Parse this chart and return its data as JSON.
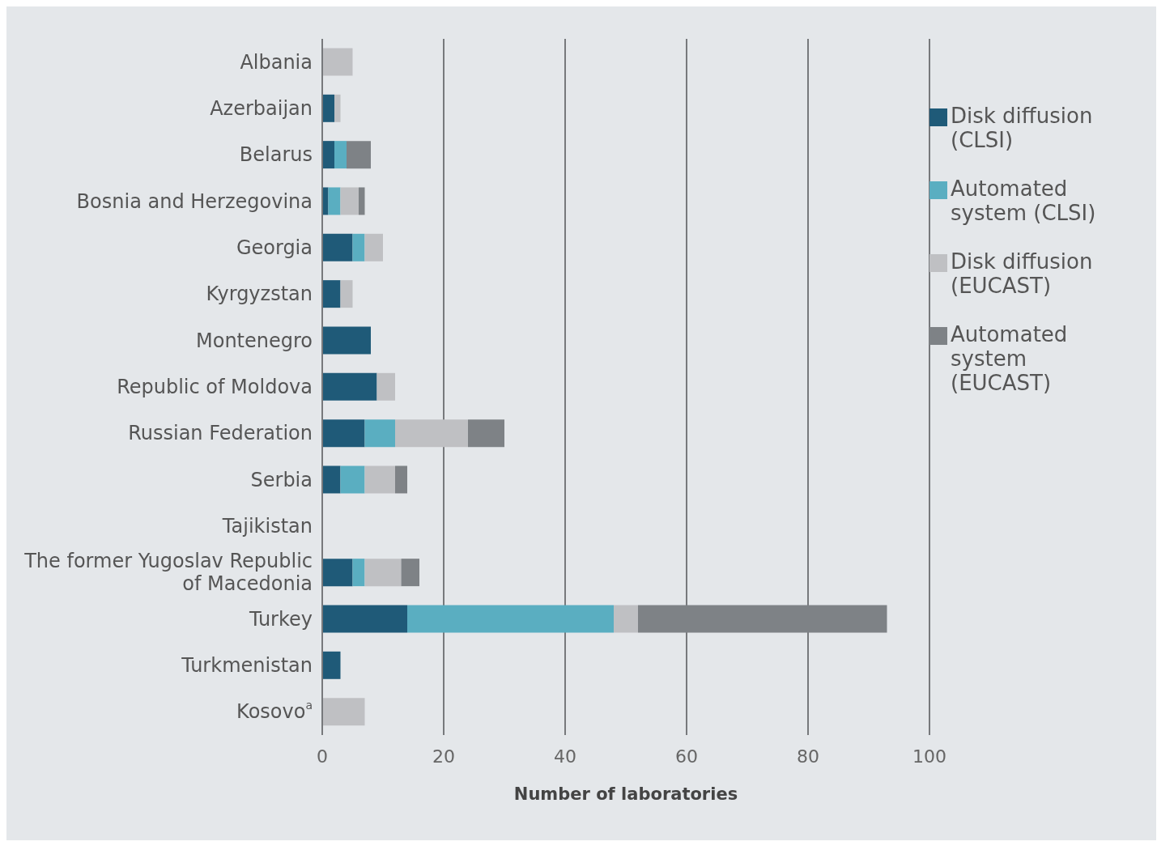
{
  "chart_data": {
    "type": "bar",
    "orientation": "horizontal",
    "stacked": true,
    "xlabel": "Number of laboratories",
    "categories": [
      "Albania",
      "Azerbaijan",
      "Belarus",
      "Bosnia and Herzegovina",
      "Georgia",
      "Kyrgyzstan",
      "Montenegro",
      "Republic of Moldova",
      "Russian Federation",
      "Serbia",
      "Tajikistan",
      "The former Yugoslav Republic of Macedonia",
      "Turkey",
      "Turkmenistan",
      "Kosovo$^{a}$"
    ],
    "series": [
      {
        "name": "Disk diffusion (CLSI)",
        "color": "#1f5a78",
        "values": [
          0,
          2,
          2,
          1,
          5,
          3,
          8,
          9,
          7,
          3,
          0,
          5,
          14,
          3,
          0
        ]
      },
      {
        "name": "Automated system (CLSI)",
        "color": "#5aaec1",
        "values": [
          0,
          0,
          2,
          2,
          2,
          0,
          0,
          0,
          5,
          4,
          0,
          2,
          34,
          0,
          0
        ]
      },
      {
        "name": "Disk diffusion (EUCAST)",
        "color": "#bfc0c3",
        "values": [
          5,
          1,
          0,
          3,
          3,
          2,
          0,
          3,
          12,
          5,
          0,
          6,
          4,
          0,
          7
        ]
      },
      {
        "name": "Automated system (EUCAST)",
        "color": "#7e8286",
        "values": [
          0,
          0,
          4,
          1,
          0,
          0,
          0,
          0,
          6,
          2,
          0,
          3,
          41,
          0,
          0
        ]
      }
    ],
    "xlim": [
      0,
      100
    ],
    "xticks": [
      0,
      20,
      40,
      60,
      80,
      100
    ],
    "grid": "x",
    "legend": "top right"
  }
}
